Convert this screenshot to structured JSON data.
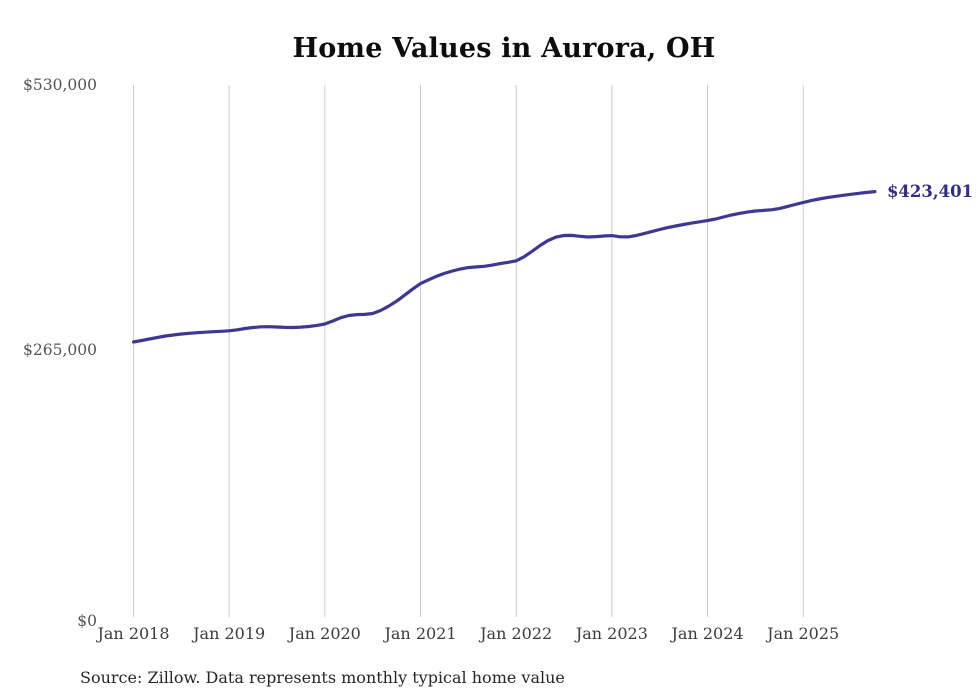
{
  "page": {
    "title": "Home Values in Aurora, OH"
  },
  "chart_data": {
    "type": "line",
    "title": "Home Values in Aurora, OH",
    "xlabel": "",
    "ylabel": "",
    "ylim": [
      0,
      530000
    ],
    "grid": "vertical-only",
    "legend": "none",
    "x_tick_labels": [
      "Jan 2018",
      "Jan 2019",
      "Jan 2020",
      "Jan 2021",
      "Jan 2022",
      "Jan 2023",
      "Jan 2024",
      "Jan 2025"
    ],
    "y_ticks": [
      {
        "label": "$0",
        "value": 0
      },
      {
        "label": "$265,000",
        "value": 265000
      },
      {
        "label": "$530,000",
        "value": 530000
      }
    ],
    "series": [
      {
        "name": "Monthly typical home value",
        "start": "Jan 2018",
        "frequency": "monthly",
        "values": [
          273000,
          274500,
          276000,
          277500,
          279000,
          280000,
          281000,
          281700,
          282300,
          282800,
          283300,
          283700,
          284200,
          285200,
          286500,
          287500,
          288200,
          288300,
          288000,
          287600,
          287500,
          287900,
          288500,
          289600,
          291000,
          294000,
          297300,
          299500,
          300400,
          300600,
          301500,
          304500,
          308800,
          313800,
          319800,
          325800,
          331400,
          335200,
          338700,
          341600,
          344000,
          346000,
          347400,
          348100,
          348700,
          349900,
          351400,
          352700,
          354200,
          358300,
          363700,
          369500,
          374500,
          377900,
          379500,
          379600,
          378700,
          378000,
          378400,
          379000,
          379400,
          378200,
          378100,
          379400,
          381300,
          383400,
          385500,
          387400,
          389000,
          390500,
          391900,
          393200,
          394400,
          396000,
          398000,
          400000,
          401600,
          402900,
          404000,
          404600,
          405200,
          406400,
          408400,
          410500,
          412500,
          414400,
          416000,
          417400,
          418600,
          419700,
          420700,
          421700,
          422600,
          423401
        ]
      }
    ],
    "end_label": "$423,401",
    "end_value": 423401,
    "line_color": "#3e3794",
    "end_label_color": "#322d7e",
    "grid_color": "#cccccc"
  },
  "footer": {
    "source": "Source: Zillow. Data represents monthly typical home value"
  }
}
